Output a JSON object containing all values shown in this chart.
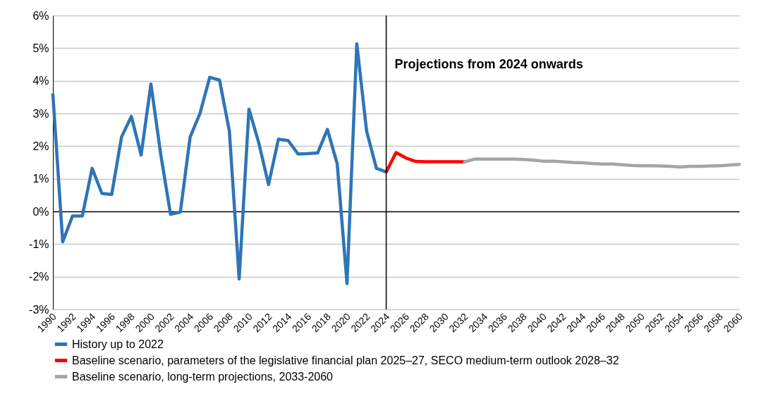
{
  "chart_data": {
    "type": "line",
    "xlim": [
      1990,
      2060
    ],
    "xticks": [
      1990,
      1992,
      1994,
      1996,
      1998,
      2000,
      2002,
      2004,
      2006,
      2008,
      2010,
      2012,
      2014,
      2016,
      2018,
      2020,
      2022,
      2024,
      2026,
      2028,
      2030,
      2032,
      2034,
      2036,
      2038,
      2040,
      2042,
      2044,
      2046,
      2048,
      2050,
      2052,
      2054,
      2056,
      2058,
      2060
    ],
    "ylim": [
      -3,
      6
    ],
    "yticks": [
      {
        "value": -3,
        "label": "-3%"
      },
      {
        "value": -2,
        "label": "-2%"
      },
      {
        "value": -1,
        "label": "-1%"
      },
      {
        "value": 0,
        "label": "0%"
      },
      {
        "value": 1,
        "label": "1%"
      },
      {
        "value": 2,
        "label": "2%"
      },
      {
        "value": 3,
        "label": "3%"
      },
      {
        "value": 4,
        "label": "4%"
      },
      {
        "value": 5,
        "label": "5%"
      },
      {
        "value": 6,
        "label": "6%"
      }
    ],
    "grid": "y",
    "legend": "bottom",
    "ref_lines": [
      {
        "axis": "x",
        "value": 2024,
        "label": "Projections from 2024 onwards",
        "color": "#000000"
      }
    ],
    "series": [
      {
        "name": "History up to 2022",
        "color": "#2e75b6",
        "x": [
          1990,
          1991,
          1992,
          1993,
          1994,
          1995,
          1996,
          1997,
          1998,
          1999,
          2000,
          2001,
          2002,
          2003,
          2004,
          2005,
          2006,
          2007,
          2008,
          2009,
          2010,
          2011,
          2012,
          2013,
          2014,
          2015,
          2016,
          2017,
          2018,
          2019,
          2020,
          2021,
          2022,
          2023,
          2024
        ],
        "values": [
          3.58,
          -0.93,
          -0.14,
          -0.14,
          1.32,
          0.55,
          0.52,
          2.28,
          2.91,
          1.73,
          3.9,
          1.75,
          -0.09,
          -0.02,
          2.28,
          3.0,
          4.11,
          4.02,
          2.46,
          -2.07,
          3.13,
          2.1,
          0.82,
          2.21,
          2.17,
          1.76,
          1.77,
          1.79,
          2.51,
          1.46,
          -2.21,
          5.13,
          2.46,
          1.32,
          1.21
        ]
      },
      {
        "name": "Baseline scenario, parameters of the legislative financial plan 2025–27, SECO medium-term outlook 2028–32",
        "color": "#ff0000",
        "x": [
          2024,
          2025,
          2026,
          2027,
          2028,
          2029,
          2030,
          2031,
          2032
        ],
        "values": [
          1.21,
          1.8,
          1.64,
          1.53,
          1.52,
          1.52,
          1.52,
          1.52,
          1.52
        ]
      },
      {
        "name": "Baseline scenario, long-term projections, 2033-2060",
        "color": "#a5a5a5",
        "x": [
          2032,
          2033,
          2034,
          2035,
          2036,
          2037,
          2038,
          2039,
          2040,
          2041,
          2042,
          2043,
          2044,
          2045,
          2046,
          2047,
          2048,
          2049,
          2050,
          2051,
          2052,
          2053,
          2054,
          2055,
          2056,
          2057,
          2058,
          2059,
          2060
        ],
        "values": [
          1.52,
          1.6,
          1.6,
          1.6,
          1.6,
          1.6,
          1.59,
          1.57,
          1.54,
          1.54,
          1.52,
          1.5,
          1.49,
          1.47,
          1.45,
          1.45,
          1.43,
          1.41,
          1.4,
          1.4,
          1.39,
          1.38,
          1.36,
          1.38,
          1.38,
          1.39,
          1.4,
          1.42,
          1.44
        ]
      }
    ]
  }
}
